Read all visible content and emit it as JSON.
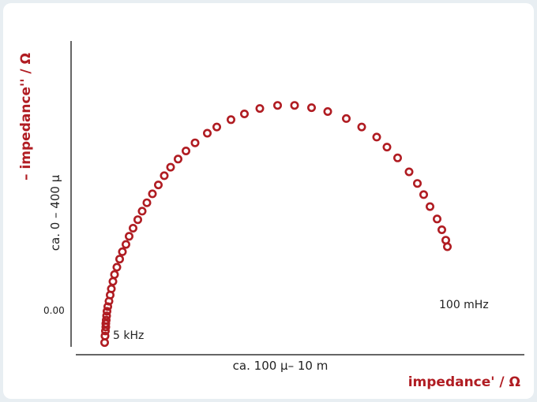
{
  "colors": {
    "accent": "#b01c22",
    "axis": "#333333",
    "text": "#222222",
    "background": "#ffffff",
    "page": "#e8eef2"
  },
  "labels": {
    "y_title": "– impedance'' / Ω",
    "x_title": "impedance' / Ω",
    "y_range": "ca. 0 – 400 μ",
    "x_range": "ca. 100 μ– 10 m",
    "y_zero": "0.00"
  },
  "annotations": {
    "high_freq": "5 kHz",
    "low_freq": "100 mHz"
  },
  "chart_data": {
    "type": "scatter",
    "marker": "hollow-circle",
    "ylabel": "– impedance'' / Ω",
    "xlabel": "impedance' / Ω",
    "x_range_label": "ca. 100 μ– 10 m",
    "y_range_label": "ca. 0 – 400 μ",
    "y_tick_labels": [
      "0.00"
    ],
    "xlim": [
      0,
      10
    ],
    "ylim": [
      -0.5,
      6.5
    ],
    "grid": false,
    "annotations": [
      {
        "text": "5 kHz",
        "x": 0.25,
        "y": -0.45
      },
      {
        "text": "100 mHz",
        "x": 8.9,
        "y": 0.55
      }
    ],
    "series": [
      {
        "x": [
          0.25,
          0.26,
          0.27,
          0.28,
          0.28,
          0.29,
          0.3,
          0.31,
          0.33,
          0.36,
          0.39,
          0.42,
          0.46,
          0.5,
          0.56,
          0.63,
          0.7,
          0.79,
          0.87,
          0.97,
          1.09,
          1.2,
          1.32,
          1.46,
          1.61,
          1.76,
          1.92,
          2.11,
          2.31,
          2.54,
          2.85,
          3.09,
          3.45,
          3.79,
          4.18,
          4.63,
          5.06,
          5.49,
          5.9,
          6.37,
          6.76,
          7.14,
          7.4,
          7.67,
          7.96,
          8.17,
          8.33,
          8.49,
          8.67,
          8.79,
          8.89,
          8.93
        ],
        "y": [
          -0.45,
          -0.28,
          -0.15,
          -0.05,
          0.04,
          0.13,
          0.24,
          0.36,
          0.48,
          0.62,
          0.78,
          0.94,
          1.13,
          1.31,
          1.5,
          1.71,
          1.9,
          2.09,
          2.3,
          2.51,
          2.73,
          2.95,
          3.17,
          3.4,
          3.63,
          3.87,
          4.09,
          4.3,
          4.51,
          4.72,
          4.97,
          5.13,
          5.32,
          5.47,
          5.61,
          5.69,
          5.69,
          5.63,
          5.53,
          5.35,
          5.13,
          4.87,
          4.61,
          4.33,
          3.97,
          3.67,
          3.38,
          3.07,
          2.75,
          2.47,
          2.2,
          2.03
        ]
      }
    ]
  }
}
